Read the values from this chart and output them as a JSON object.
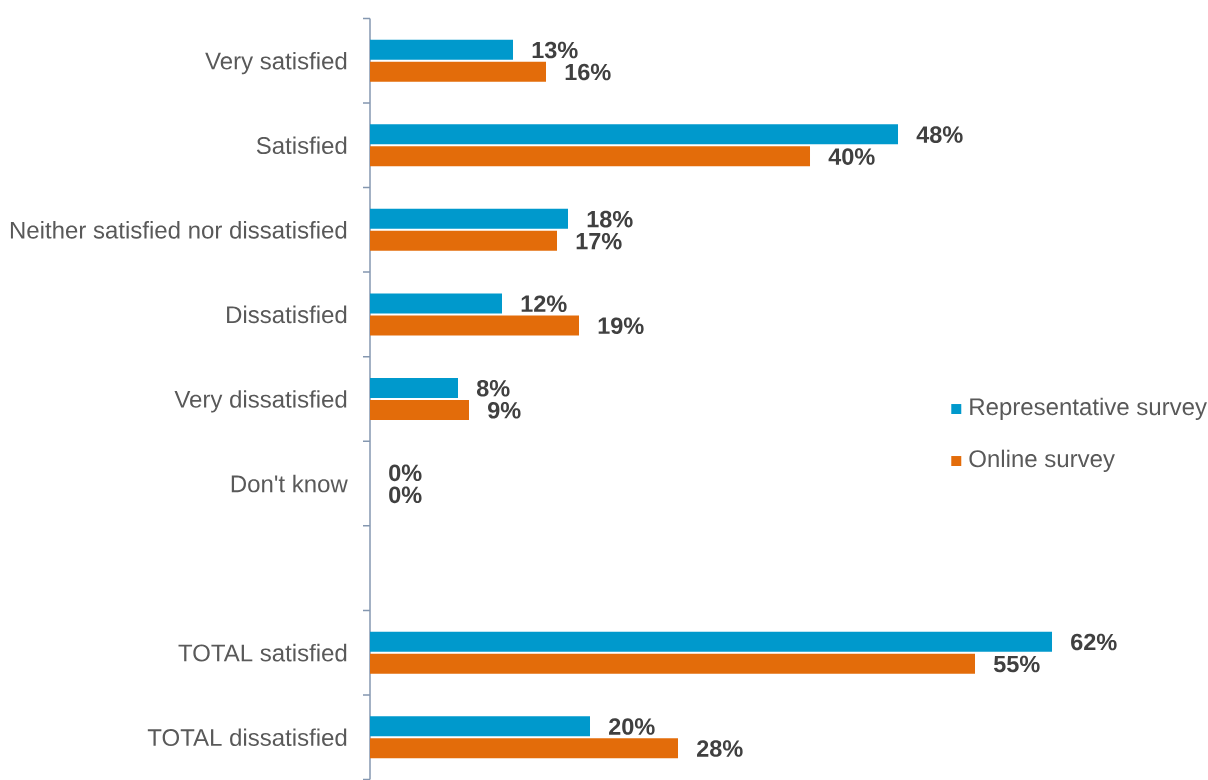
{
  "chart_data": {
    "type": "bar",
    "orientation": "horizontal",
    "categories": [
      "Very satisfied",
      "Satisfied",
      "Neither satisfied nor dissatisfied",
      "Dissatisfied",
      "Very dissatisfied",
      "Don't know",
      null,
      "TOTAL satisfied",
      "TOTAL dissatisfied"
    ],
    "series": [
      {
        "name": "Representative survey",
        "color": "#0099cc",
        "values": [
          13,
          48,
          18,
          12,
          8,
          0,
          null,
          62,
          20
        ],
        "value_labels": [
          "13%",
          "48%",
          "18%",
          "12%",
          "8%",
          "0%",
          null,
          "62%",
          "20%"
        ]
      },
      {
        "name": "Online survey",
        "color": "#e36c0a",
        "values": [
          16,
          40,
          17,
          19,
          9,
          0,
          null,
          55,
          28
        ],
        "value_labels": [
          "16%",
          "40%",
          "17%",
          "19%",
          "9%",
          "0%",
          null,
          "55%",
          "28%"
        ]
      }
    ],
    "legend": "right"
  }
}
